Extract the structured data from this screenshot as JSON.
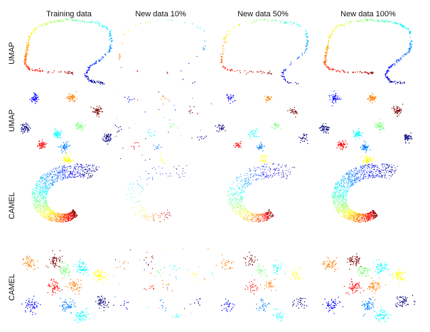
{
  "figure": {
    "column_titles": [
      "Training data",
      "New data 10%",
      "New data 50%",
      "New data 100%"
    ],
    "row_labels": [
      "UMAP",
      "UMAP",
      "CAMEL",
      "CAMEL"
    ],
    "subplot_captions": [
      [
        "",
        "",
        "",
        ""
      ],
      [
        "",
        "",
        "",
        ""
      ],
      [
        "",
        "",
        "",
        ""
      ],
      [
        "",
        "",
        "",
        ""
      ]
    ]
  },
  "chart_data": {
    "type": "scatter",
    "grid": false,
    "legend": "none",
    "colormap": [
      "#00007f",
      "#0000ff",
      "#007fff",
      "#00ffff",
      "#7fff7f",
      "#ffff00",
      "#ff7f00",
      "#ff0000",
      "#7f0000"
    ],
    "fractions_shown": [
      1.0,
      0.1,
      0.5,
      1.0
    ],
    "panels": [
      {
        "row": 0,
        "method": "UMAP",
        "dataset": "curve",
        "clusters": []
      },
      {
        "row": 1,
        "method": "UMAP",
        "dataset": "clusters",
        "clusters": [
          {
            "cx": 0.15,
            "cy": 0.1,
            "color": "#0000ff"
          },
          {
            "cx": 0.52,
            "cy": 0.1,
            "color": "#ff7f00"
          },
          {
            "cx": 0.78,
            "cy": 0.28,
            "color": "#7f0000"
          },
          {
            "cx": 0.6,
            "cy": 0.48,
            "color": "#7fff7f"
          },
          {
            "cx": 0.38,
            "cy": 0.6,
            "color": "#00ffff"
          },
          {
            "cx": 0.05,
            "cy": 0.52,
            "color": "#00007f"
          },
          {
            "cx": 0.45,
            "cy": 0.78,
            "color": "#007fff"
          },
          {
            "cx": 0.88,
            "cy": 0.65,
            "color": "#00007f"
          },
          {
            "cx": 0.22,
            "cy": 0.75,
            "color": "#ff0000"
          },
          {
            "cx": 0.48,
            "cy": 0.95,
            "color": "#ffff00"
          }
        ]
      },
      {
        "row": 2,
        "method": "CAMEL",
        "dataset": "curve",
        "clusters": []
      },
      {
        "row": 3,
        "method": "CAMEL",
        "dataset": "clusters",
        "clusters": [
          {
            "cx": 0.1,
            "cy": 0.22,
            "color": "#ff7f00"
          },
          {
            "cx": 0.35,
            "cy": 0.18,
            "color": "#7f0000"
          },
          {
            "cx": 0.45,
            "cy": 0.32,
            "color": "#7fff7f"
          },
          {
            "cx": 0.62,
            "cy": 0.28,
            "color": "#00ffff"
          },
          {
            "cx": 0.8,
            "cy": 0.38,
            "color": "#ffff00"
          },
          {
            "cx": 0.35,
            "cy": 0.55,
            "color": "#ff0000"
          },
          {
            "cx": 0.55,
            "cy": 0.52,
            "color": "#ff7f00"
          },
          {
            "cx": 0.12,
            "cy": 0.8,
            "color": "#0000ff"
          },
          {
            "cx": 0.48,
            "cy": 0.8,
            "color": "#007fff"
          },
          {
            "cx": 0.84,
            "cy": 0.76,
            "color": "#00007f"
          },
          {
            "cx": 0.62,
            "cy": 0.95,
            "color": "#00ffff"
          }
        ]
      }
    ]
  }
}
